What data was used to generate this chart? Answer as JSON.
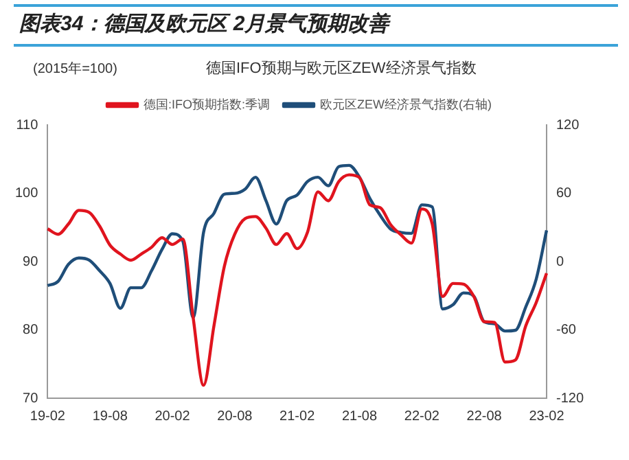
{
  "chart_data": {
    "type": "line",
    "title": "图表34：德国及欧元区 2月景气预期改善",
    "subtitle": "德国IFO预期与欧元区ZEW经济景气指数",
    "ylabel": "(2015年=100)",
    "categories": [
      "19-02",
      null,
      null,
      null,
      null,
      null,
      "19-08",
      null,
      null,
      null,
      null,
      null,
      "20-02",
      null,
      null,
      null,
      null,
      null,
      "20-08",
      null,
      null,
      null,
      null,
      null,
      "21-02",
      null,
      null,
      null,
      null,
      null,
      "21-08",
      null,
      null,
      null,
      null,
      null,
      "22-02",
      null,
      null,
      null,
      null,
      null,
      "22-08",
      null,
      null,
      null,
      null,
      null,
      "23-02"
    ],
    "series": [
      {
        "name": "德国:IFO预期指数:季调",
        "color": "#e0141e",
        "values": [
          94.8,
          94.0,
          95.5,
          97.5,
          97.2,
          95.2,
          92.4,
          91.1,
          90.2,
          91.1,
          92.1,
          93.5,
          92.5,
          93.3,
          81.8,
          71.9,
          80.6,
          89.3,
          94.0,
          96.3,
          96.6,
          94.9,
          92.5,
          94.1,
          91.9,
          94.3,
          100.2,
          98.9,
          101.7,
          102.7,
          102.3,
          98.3,
          97.9,
          95.4,
          93.9,
          92.7,
          97.7,
          95.5,
          84.9,
          86.8,
          86.7,
          84.9,
          81.2,
          81.1,
          75.3,
          75.6,
          80.6,
          84.0,
          88.3
        ]
      },
      {
        "name": "欧元区ZEW经济景气指数(右轴)",
        "color": "#1f4e79",
        "axis": "y2",
        "values": [
          -21.1,
          -17.4,
          -2.4,
          3.2,
          1.3,
          -8.0,
          -19.2,
          -41,
          -23,
          -23,
          -8.0,
          10.6,
          24.4,
          18.1,
          -49.1,
          25.6,
          42.4,
          59.2,
          59.9,
          63.6,
          74.1,
          53.6,
          33.0,
          53.6,
          58.4,
          70.3,
          74.1,
          66.6,
          83.4,
          84.5,
          74.1,
          55.4,
          40.5,
          28.5,
          25.6,
          24.8,
          49.8,
          48.0,
          -41.6,
          -37.9,
          -27.5,
          -30.4,
          -52.8,
          -54.7,
          -61.0,
          -60.3,
          -39.8,
          -15.5,
          27.4
        ]
      }
    ],
    "ylim": [
      70,
      110
    ],
    "yticks": [
      70,
      80,
      90,
      100,
      110
    ],
    "y2lim": [
      -120,
      120
    ],
    "y2ticks": [
      -120,
      -60,
      0,
      60,
      120
    ],
    "grid": false,
    "legend": "top",
    "marker": "none",
    "line_style": "solid"
  }
}
